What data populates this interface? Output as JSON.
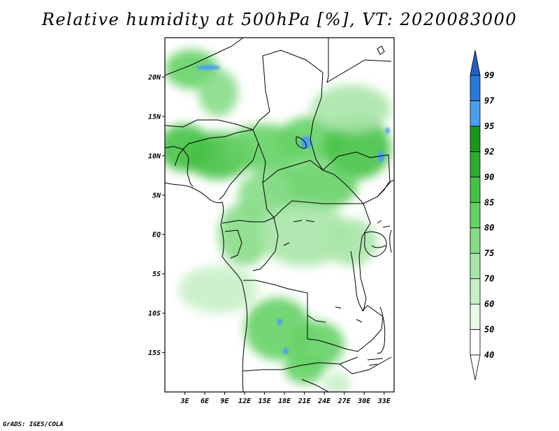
{
  "title": "Relative humidity at 500hPa [%], VT: 2020083000",
  "credit": "GrADS: IGES/COLA",
  "colors": {
    "frame": "#000000",
    "border": "#000000",
    "land_water": "#ffffff"
  },
  "chart_data": {
    "type": "heatmap",
    "variable": "Relative humidity",
    "level": "500hPa",
    "units": "%",
    "valid_time": "2020083000",
    "lon_range": [
      0,
      34.5
    ],
    "lat_range": [
      -20,
      25
    ],
    "x_ticks": [
      {
        "value": 3,
        "label": "3E"
      },
      {
        "value": 6,
        "label": "6E"
      },
      {
        "value": 9,
        "label": "9E"
      },
      {
        "value": 12,
        "label": "12E"
      },
      {
        "value": 15,
        "label": "15E"
      },
      {
        "value": 18,
        "label": "18E"
      },
      {
        "value": 21,
        "label": "21E"
      },
      {
        "value": 24,
        "label": "24E"
      },
      {
        "value": 27,
        "label": "27E"
      },
      {
        "value": 30,
        "label": "30E"
      },
      {
        "value": 33,
        "label": "33E"
      }
    ],
    "y_ticks": [
      {
        "value": 20,
        "label": "20N"
      },
      {
        "value": 15,
        "label": "15N"
      },
      {
        "value": 10,
        "label": "10N"
      },
      {
        "value": 5,
        "label": "5N"
      },
      {
        "value": 0,
        "label": "EQ"
      },
      {
        "value": -5,
        "label": "5S"
      },
      {
        "value": -10,
        "label": "10S"
      },
      {
        "value": -15,
        "label": "15S"
      }
    ],
    "colorbar": {
      "levels": [
        {
          "value": 40,
          "label": "40",
          "color": "#ffffff"
        },
        {
          "value": 50,
          "label": "50",
          "color": "#e6fae6"
        },
        {
          "value": 60,
          "label": "60",
          "color": "#c8f0c8"
        },
        {
          "value": 70,
          "label": "70",
          "color": "#a8e6a8"
        },
        {
          "value": 75,
          "label": "75",
          "color": "#87dc87"
        },
        {
          "value": 80,
          "label": "80",
          "color": "#65d265"
        },
        {
          "value": 85,
          "label": "85",
          "color": "#46c246"
        },
        {
          "value": 90,
          "label": "90",
          "color": "#2eaa2e"
        },
        {
          "value": 92,
          "label": "92",
          "color": "#1a961a"
        },
        {
          "value": 95,
          "label": "95",
          "color": "#4c9ef0"
        },
        {
          "value": 97,
          "label": "97",
          "color": "#2b78dc"
        },
        {
          "value": 99,
          "label": "99",
          "color": "#1f5ecb"
        }
      ],
      "below_color": "#ffffff",
      "above_color": "#1f5ecb"
    },
    "humidity_regions": [
      {
        "lon": 4,
        "lat": 21,
        "rx": 4,
        "ry": 2.5,
        "value": 82
      },
      {
        "lon": 8,
        "lat": 18,
        "rx": 3,
        "ry": 3,
        "value": 78
      },
      {
        "lon": 3,
        "lat": 11,
        "rx": 4,
        "ry": 3,
        "value": 85
      },
      {
        "lon": 8,
        "lat": 10,
        "rx": 5,
        "ry": 3,
        "value": 88
      },
      {
        "lon": 15,
        "lat": 11,
        "rx": 6,
        "ry": 3,
        "value": 84
      },
      {
        "lon": 22,
        "lat": 12,
        "rx": 5,
        "ry": 3,
        "value": 82
      },
      {
        "lon": 29,
        "lat": 11,
        "rx": 5,
        "ry": 4,
        "value": 86
      },
      {
        "lon": 28,
        "lat": 16,
        "rx": 6,
        "ry": 3,
        "value": 72
      },
      {
        "lon": 22,
        "lat": 6,
        "rx": 7,
        "ry": 3,
        "value": 82
      },
      {
        "lon": 15,
        "lat": 5,
        "rx": 4,
        "ry": 3,
        "value": 78
      },
      {
        "lon": 12,
        "lat": 0,
        "rx": 4,
        "ry": 4,
        "value": 76
      },
      {
        "lon": 21,
        "lat": 0,
        "rx": 7,
        "ry": 4,
        "value": 74
      },
      {
        "lon": 28,
        "lat": -1,
        "rx": 4,
        "ry": 3,
        "value": 70
      },
      {
        "lon": 8,
        "lat": -7,
        "rx": 6,
        "ry": 3,
        "value": 64
      },
      {
        "lon": 17,
        "lat": -12,
        "rx": 5,
        "ry": 4,
        "value": 80
      },
      {
        "lon": 23,
        "lat": -14,
        "rx": 4,
        "ry": 3,
        "value": 84
      },
      {
        "lon": 21,
        "lat": -17,
        "rx": 3,
        "ry": 2,
        "value": 80
      },
      {
        "lon": 26,
        "lat": -19,
        "rx": 2,
        "ry": 1.5,
        "value": 66
      }
    ],
    "saturated_spots": [
      {
        "lon": 6.5,
        "lat": 21.2,
        "rx": 1.8,
        "ry": 0.3,
        "value": 96
      },
      {
        "lon": 21.3,
        "lat": 11.7,
        "rx": 0.8,
        "ry": 0.8,
        "value": 96
      },
      {
        "lon": 33.5,
        "lat": 13.2,
        "rx": 0.3,
        "ry": 0.4,
        "value": 96
      },
      {
        "lon": 32.5,
        "lat": 9.9,
        "rx": 0.5,
        "ry": 0.7,
        "value": 96
      },
      {
        "lon": 17.3,
        "lat": -11.1,
        "rx": 0.4,
        "ry": 0.4,
        "value": 96
      },
      {
        "lon": 18.2,
        "lat": -14.8,
        "rx": 0.4,
        "ry": 0.4,
        "value": 96
      }
    ]
  }
}
